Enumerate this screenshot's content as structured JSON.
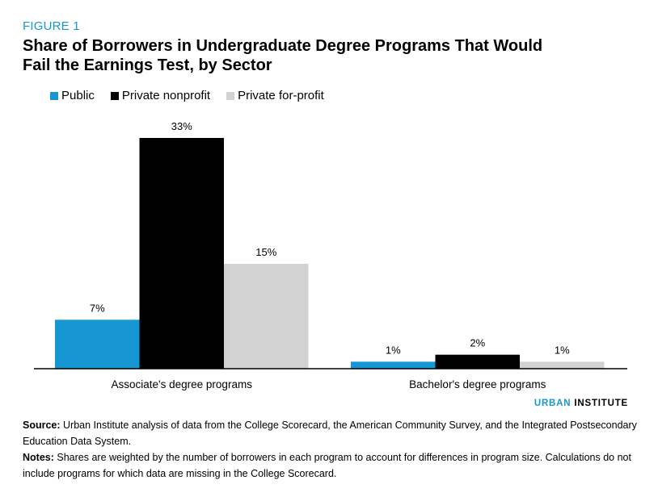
{
  "header": {
    "figure_label": "FIGURE 1",
    "title": "Share of Borrowers in Undergraduate Degree Programs That Would Fail the Earnings Test, by Sector"
  },
  "legend": [
    {
      "label": "Public",
      "color": "#1696d2"
    },
    {
      "label": "Private nonprofit",
      "color": "#000000"
    },
    {
      "label": "Private for-profit",
      "color": "#d2d2d2"
    }
  ],
  "chart_data": {
    "type": "bar",
    "title": "Share of Borrowers in Undergraduate Degree Programs That Would Fail the Earnings Test, by Sector",
    "xlabel": "",
    "ylabel": "",
    "categories": [
      "Associate's degree programs",
      "Bachelor's degree programs"
    ],
    "series": [
      {
        "name": "Public",
        "values": [
          7,
          1
        ],
        "labels": [
          "7%",
          "1%"
        ],
        "color": "#1696d2"
      },
      {
        "name": "Private nonprofit",
        "values": [
          33,
          2
        ],
        "labels": [
          "33%",
          "2%"
        ],
        "color": "#000000"
      },
      {
        "name": "Private for-profit",
        "values": [
          15,
          1
        ],
        "labels": [
          "15%",
          "1%"
        ],
        "color": "#d2d2d2"
      }
    ],
    "ylim": [
      0,
      33
    ],
    "grid": false,
    "legend_position": "top-left"
  },
  "branding": {
    "urban": "URBAN",
    "institute": "INSTITUTE"
  },
  "footer": {
    "source_label": "Source:",
    "source_text": "Urban Institute analysis of data from the College Scorecard, the American Community Survey, and the Integrated Postsecondary Education Data System.",
    "notes_label": "Notes:",
    "notes_text": "Shares are weighted by the number of borrowers in each program to account for differences in program size. Calculations do not include programs for which data are missing in the College Scorecard."
  }
}
